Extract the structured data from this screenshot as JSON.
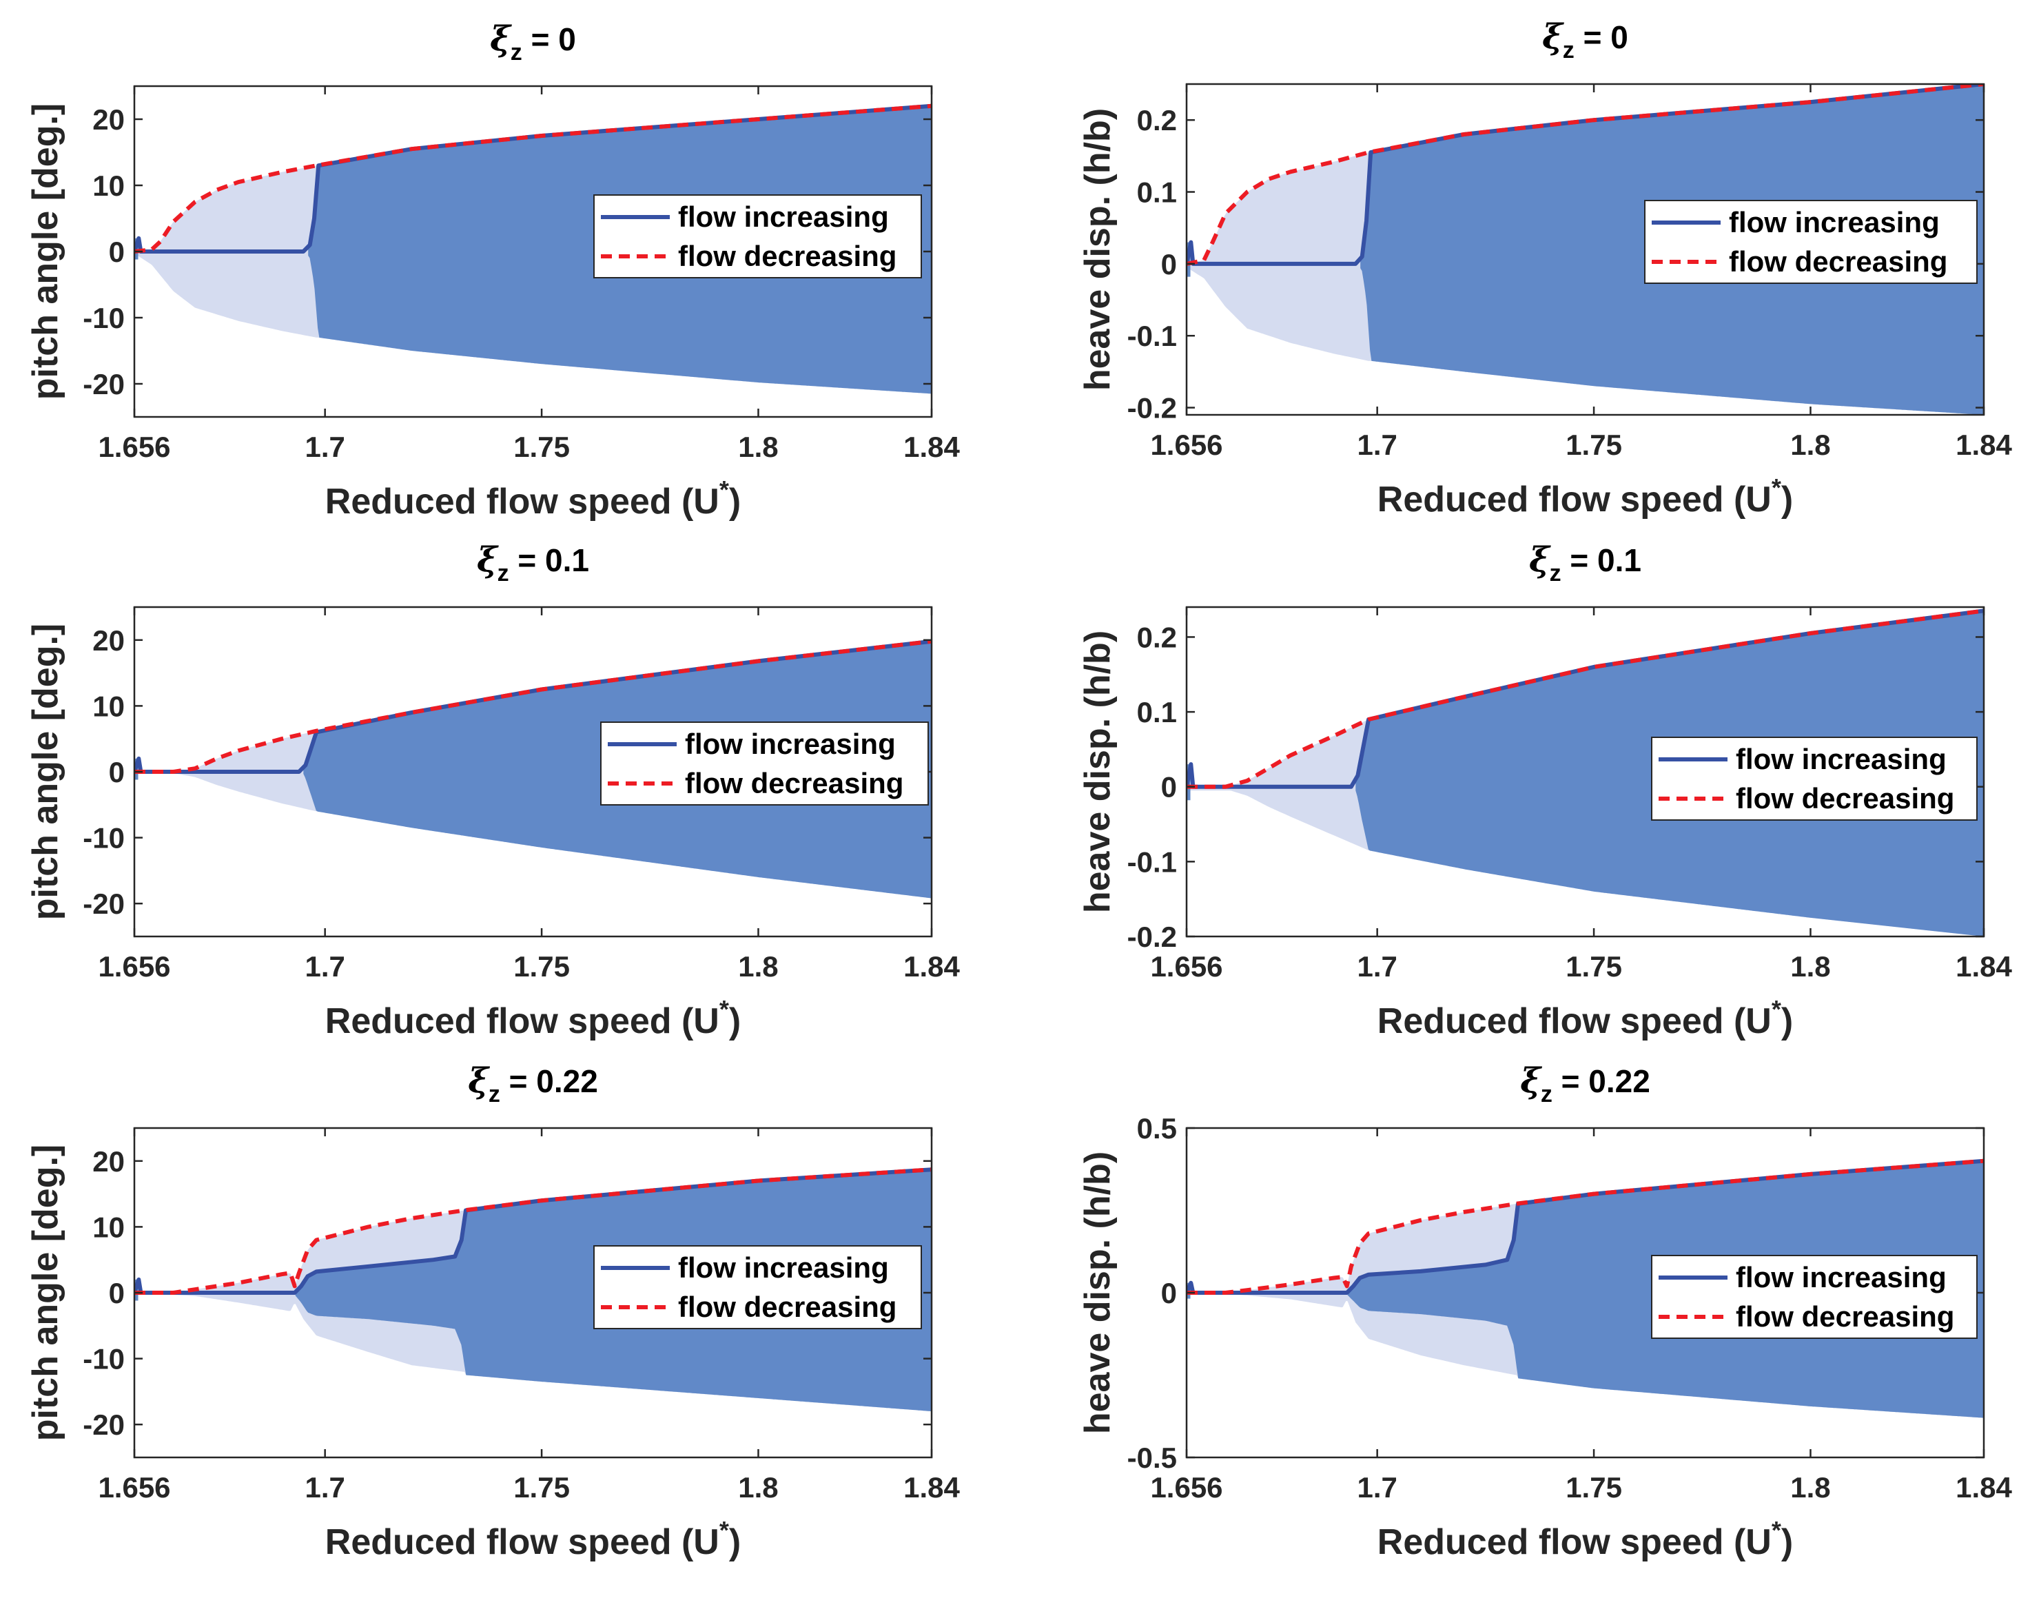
{
  "chart_data": [
    {
      "type": "line",
      "title_symbol": "ξ",
      "title_subscript": "z",
      "title_value": " = 0",
      "xlabel_main": "Reduced flow speed (U",
      "xlabel_sup": "*",
      "xlabel_end": ")",
      "ylabel": "pitch angle [deg.]",
      "xlim": [
        1.656,
        1.84
      ],
      "ylim": [
        -25,
        25
      ],
      "xticks": [
        1.656,
        1.7,
        1.75,
        1.8,
        1.84
      ],
      "xtick_labels": [
        "1.656",
        "1.7",
        "1.75",
        "1.8",
        "1.84"
      ],
      "yticks": [
        20,
        10,
        0,
        -10,
        -20
      ],
      "ytick_labels": [
        "20",
        "10",
        "0",
        "-10",
        "-20"
      ],
      "legend": [
        "flow increasing",
        "flow decreasing"
      ],
      "series": [
        {
          "name": "flow increasing",
          "x": [
            1.656,
            1.657,
            1.6575,
            1.66,
            1.68,
            1.695,
            1.6965,
            1.6975,
            1.6985,
            1.72,
            1.75,
            1.8,
            1.84
          ],
          "y": [
            0,
            2,
            0,
            0,
            0,
            0,
            1.0,
            5,
            13,
            15.5,
            17.5,
            20,
            22
          ]
        },
        {
          "name": "flow decreasing",
          "x": [
            1.656,
            1.66,
            1.662,
            1.665,
            1.67,
            1.675,
            1.68,
            1.69,
            1.698,
            1.72,
            1.75,
            1.8,
            1.84
          ],
          "y": [
            0,
            0.3,
            1.5,
            4.5,
            7.5,
            9.3,
            10.5,
            12,
            13,
            15.5,
            17.5,
            20,
            22
          ]
        }
      ],
      "envelope_lower_light": {
        "x": [
          1.656,
          1.66,
          1.665,
          1.67,
          1.68,
          1.69,
          1.698
        ],
        "y": [
          -0.3,
          -2,
          -6,
          -8.5,
          -10.5,
          -12,
          -13
        ]
      },
      "envelope_lower_dark": {
        "x": [
          1.696,
          1.6965,
          1.6975,
          1.6985,
          1.72,
          1.75,
          1.8,
          1.84
        ],
        "y": [
          -0.5,
          -1,
          -5,
          -13,
          -15,
          -17,
          -19.8,
          -21.5
        ]
      }
    },
    {
      "type": "line",
      "title_symbol": "ξ",
      "title_subscript": "z",
      "title_value": " = 0",
      "xlabel_main": "Reduced flow speed (U",
      "xlabel_sup": "*",
      "xlabel_end": ")",
      "ylabel": "heave disp. (h/b)",
      "xlim": [
        1.656,
        1.84
      ],
      "ylim": [
        -0.21,
        0.25
      ],
      "xticks": [
        1.656,
        1.7,
        1.75,
        1.8,
        1.84
      ],
      "xtick_labels": [
        "1.656",
        "1.7",
        "1.75",
        "1.8",
        "1.84"
      ],
      "yticks": [
        0.2,
        0.1,
        0,
        -0.1,
        -0.2
      ],
      "ytick_labels": [
        "0.2",
        "0.1",
        "0",
        "-0.1",
        "-0.2"
      ],
      "legend": [
        "flow increasing",
        "flow decreasing"
      ],
      "series": [
        {
          "name": "flow increasing",
          "x": [
            1.656,
            1.657,
            1.6575,
            1.66,
            1.68,
            1.695,
            1.6965,
            1.6975,
            1.6985,
            1.72,
            1.75,
            1.8,
            1.84
          ],
          "y": [
            0,
            0.03,
            0,
            0,
            0,
            0,
            0.01,
            0.06,
            0.155,
            0.18,
            0.2,
            0.225,
            0.25
          ]
        },
        {
          "name": "flow decreasing",
          "x": [
            1.656,
            1.66,
            1.662,
            1.665,
            1.67,
            1.675,
            1.68,
            1.69,
            1.698,
            1.72,
            1.75,
            1.8,
            1.84
          ],
          "y": [
            0,
            0.005,
            0.03,
            0.07,
            0.1,
            0.118,
            0.128,
            0.142,
            0.155,
            0.18,
            0.2,
            0.225,
            0.25
          ]
        }
      ],
      "envelope_lower_light": {
        "x": [
          1.656,
          1.66,
          1.665,
          1.67,
          1.68,
          1.69,
          1.698
        ],
        "y": [
          -0.005,
          -0.02,
          -0.06,
          -0.09,
          -0.11,
          -0.125,
          -0.135
        ]
      },
      "envelope_lower_dark": {
        "x": [
          1.696,
          1.6965,
          1.6975,
          1.6985,
          1.72,
          1.75,
          1.8,
          1.84
        ],
        "y": [
          -0.005,
          -0.01,
          -0.05,
          -0.135,
          -0.15,
          -0.17,
          -0.195,
          -0.21
        ]
      }
    },
    {
      "type": "line",
      "title_symbol": "ξ",
      "title_subscript": "z",
      "title_value": " = 0.1",
      "xlabel_main": "Reduced flow speed (U",
      "xlabel_sup": "*",
      "xlabel_end": ")",
      "ylabel": "pitch angle [deg.]",
      "xlim": [
        1.656,
        1.84
      ],
      "ylim": [
        -25,
        25
      ],
      "xticks": [
        1.656,
        1.7,
        1.75,
        1.8,
        1.84
      ],
      "xtick_labels": [
        "1.656",
        "1.7",
        "1.75",
        "1.8",
        "1.84"
      ],
      "yticks": [
        20,
        10,
        0,
        -10,
        -20
      ],
      "ytick_labels": [
        "20",
        "10",
        "0",
        "-10",
        "-20"
      ],
      "legend": [
        "flow increasing",
        "flow decreasing"
      ],
      "series": [
        {
          "name": "flow increasing",
          "x": [
            1.656,
            1.657,
            1.6575,
            1.66,
            1.68,
            1.694,
            1.6955,
            1.6965,
            1.698,
            1.72,
            1.75,
            1.8,
            1.84
          ],
          "y": [
            0,
            2,
            0,
            0,
            0,
            0,
            1,
            3,
            6,
            9,
            12.5,
            16.8,
            19.8
          ]
        },
        {
          "name": "flow decreasing",
          "x": [
            1.656,
            1.665,
            1.67,
            1.675,
            1.68,
            1.69,
            1.698,
            1.72,
            1.75,
            1.8,
            1.84
          ],
          "y": [
            0,
            0,
            0.5,
            2,
            3.2,
            5,
            6.2,
            9,
            12.5,
            16.8,
            19.8
          ]
        }
      ],
      "envelope_lower_light": {
        "x": [
          1.656,
          1.665,
          1.67,
          1.675,
          1.68,
          1.69,
          1.698
        ],
        "y": [
          0,
          -0.2,
          -0.8,
          -2,
          -3,
          -4.8,
          -6
        ]
      },
      "envelope_lower_dark": {
        "x": [
          1.695,
          1.6955,
          1.6965,
          1.698,
          1.72,
          1.75,
          1.8,
          1.84
        ],
        "y": [
          -0.3,
          -1,
          -3,
          -6,
          -8.5,
          -11.5,
          -16,
          -19.2
        ]
      }
    },
    {
      "type": "line",
      "title_symbol": "ξ",
      "title_subscript": "z",
      "title_value": " = 0.1",
      "xlabel_main": "Reduced flow speed (U",
      "xlabel_sup": "*",
      "xlabel_end": ")",
      "ylabel": "heave disp. (h/b)",
      "xlim": [
        1.656,
        1.84
      ],
      "ylim": [
        -0.2,
        0.24
      ],
      "xticks": [
        1.656,
        1.7,
        1.75,
        1.8,
        1.84
      ],
      "xtick_labels": [
        "1.656",
        "1.7",
        "1.75",
        "1.8",
        "1.84"
      ],
      "yticks": [
        0.2,
        0.1,
        0,
        -0.1,
        -0.2
      ],
      "ytick_labels": [
        "0.2",
        "0.1",
        "0",
        "-0.1",
        "-0.2"
      ],
      "legend": [
        "flow increasing",
        "flow decreasing"
      ],
      "series": [
        {
          "name": "flow increasing",
          "x": [
            1.656,
            1.657,
            1.6575,
            1.66,
            1.68,
            1.694,
            1.6955,
            1.6965,
            1.698,
            1.72,
            1.75,
            1.8,
            1.84
          ],
          "y": [
            0,
            0.03,
            0,
            0,
            0,
            0,
            0.015,
            0.045,
            0.09,
            0.12,
            0.16,
            0.205,
            0.235
          ]
        },
        {
          "name": "flow decreasing",
          "x": [
            1.656,
            1.665,
            1.67,
            1.675,
            1.68,
            1.69,
            1.698,
            1.72,
            1.75,
            1.8,
            1.84
          ],
          "y": [
            0,
            0,
            0.008,
            0.025,
            0.042,
            0.068,
            0.09,
            0.12,
            0.16,
            0.205,
            0.235
          ]
        }
      ],
      "envelope_lower_light": {
        "x": [
          1.656,
          1.665,
          1.67,
          1.675,
          1.68,
          1.69,
          1.698
        ],
        "y": [
          0,
          -0.003,
          -0.012,
          -0.027,
          -0.04,
          -0.065,
          -0.085
        ]
      },
      "envelope_lower_dark": {
        "x": [
          1.695,
          1.6955,
          1.6965,
          1.698,
          1.72,
          1.75,
          1.8,
          1.84
        ],
        "y": [
          -0.005,
          -0.015,
          -0.045,
          -0.085,
          -0.11,
          -0.14,
          -0.175,
          -0.2
        ]
      }
    },
    {
      "type": "line",
      "title_symbol": "ξ",
      "title_subscript": "z",
      "title_value": " = 0.22",
      "xlabel_main": "Reduced flow speed (U",
      "xlabel_sup": "*",
      "xlabel_end": ")",
      "ylabel": "pitch angle [deg.]",
      "xlim": [
        1.656,
        1.84
      ],
      "ylim": [
        -25,
        25
      ],
      "xticks": [
        1.656,
        1.7,
        1.75,
        1.8,
        1.84
      ],
      "xtick_labels": [
        "1.656",
        "1.7",
        "1.75",
        "1.8",
        "1.84"
      ],
      "yticks": [
        20,
        10,
        0,
        -10,
        -20
      ],
      "ytick_labels": [
        "20",
        "10",
        "0",
        "-10",
        "-20"
      ],
      "legend": [
        "flow increasing",
        "flow decreasing"
      ],
      "series": [
        {
          "name": "flow increasing",
          "x": [
            1.656,
            1.657,
            1.6575,
            1.66,
            1.68,
            1.693,
            1.6945,
            1.696,
            1.698,
            1.71,
            1.725,
            1.73,
            1.7315,
            1.7325,
            1.75,
            1.8,
            1.84
          ],
          "y": [
            0,
            2,
            0,
            0,
            0,
            0,
            1,
            2.5,
            3.2,
            4,
            5,
            5.5,
            8,
            12.5,
            14,
            17,
            18.7
          ]
        },
        {
          "name": "flow decreasing",
          "x": [
            1.656,
            1.665,
            1.67,
            1.68,
            1.69,
            1.692,
            1.693,
            1.694,
            1.696,
            1.698,
            1.71,
            1.72,
            1.732,
            1.75,
            1.8,
            1.84
          ],
          "y": [
            0,
            0,
            0.5,
            1.5,
            2.8,
            3.0,
            1.0,
            3,
            6.5,
            8,
            10,
            11.3,
            12.5,
            14,
            17,
            18.7
          ]
        }
      ],
      "envelope_lower_light": {
        "x": [
          1.656,
          1.67,
          1.68,
          1.692,
          1.693,
          1.695,
          1.698,
          1.71,
          1.72,
          1.732
        ],
        "y": [
          0,
          -0.5,
          -1.5,
          -2.8,
          -1.5,
          -4,
          -6.5,
          -9,
          -11,
          -12
        ]
      },
      "envelope_lower_dark": {
        "x": [
          1.693,
          1.6945,
          1.696,
          1.698,
          1.71,
          1.725,
          1.73,
          1.7315,
          1.7325,
          1.75,
          1.8,
          1.84
        ],
        "y": [
          -0.3,
          -1.5,
          -3,
          -3.5,
          -4,
          -5,
          -5.5,
          -8,
          -12.5,
          -13.5,
          -16,
          -18
        ]
      }
    },
    {
      "type": "line",
      "title_symbol": "ξ",
      "title_subscript": "z",
      "title_value": " = 0.22",
      "xlabel_main": "Reduced flow speed (U",
      "xlabel_sup": "*",
      "xlabel_end": ")",
      "ylabel": "heave disp. (h/b)",
      "xlim": [
        1.656,
        1.84
      ],
      "ylim": [
        -0.5,
        0.5
      ],
      "xticks": [
        1.656,
        1.7,
        1.75,
        1.8,
        1.84
      ],
      "xtick_labels": [
        "1.656",
        "1.7",
        "1.75",
        "1.8",
        "1.84"
      ],
      "yticks": [
        0.5,
        0,
        -0.5
      ],
      "ytick_labels": [
        "0.5",
        "0",
        "-0.5"
      ],
      "legend": [
        "flow increasing",
        "flow decreasing"
      ],
      "series": [
        {
          "name": "flow increasing",
          "x": [
            1.656,
            1.657,
            1.6575,
            1.66,
            1.68,
            1.693,
            1.6945,
            1.696,
            1.698,
            1.71,
            1.725,
            1.73,
            1.7315,
            1.7325,
            1.75,
            1.8,
            1.84
          ],
          "y": [
            0,
            0.03,
            0,
            0,
            0,
            0,
            0.02,
            0.045,
            0.055,
            0.065,
            0.085,
            0.1,
            0.16,
            0.27,
            0.3,
            0.36,
            0.4
          ]
        },
        {
          "name": "flow decreasing",
          "x": [
            1.656,
            1.665,
            1.67,
            1.68,
            1.69,
            1.692,
            1.693,
            1.694,
            1.696,
            1.698,
            1.71,
            1.72,
            1.732,
            1.75,
            1.8,
            1.84
          ],
          "y": [
            0,
            0,
            0.008,
            0.025,
            0.045,
            0.048,
            0.02,
            0.08,
            0.15,
            0.18,
            0.22,
            0.245,
            0.27,
            0.3,
            0.36,
            0.4
          ]
        }
      ],
      "envelope_lower_light": {
        "x": [
          1.656,
          1.67,
          1.68,
          1.692,
          1.693,
          1.695,
          1.698,
          1.71,
          1.72,
          1.732
        ],
        "y": [
          0,
          -0.008,
          -0.02,
          -0.045,
          -0.02,
          -0.09,
          -0.14,
          -0.19,
          -0.22,
          -0.25
        ]
      },
      "envelope_lower_dark": {
        "x": [
          1.693,
          1.6945,
          1.696,
          1.698,
          1.71,
          1.725,
          1.73,
          1.7315,
          1.7325,
          1.75,
          1.8,
          1.84
        ],
        "y": [
          -0.005,
          -0.025,
          -0.045,
          -0.055,
          -0.065,
          -0.085,
          -0.1,
          -0.16,
          -0.26,
          -0.29,
          -0.345,
          -0.38
        ]
      }
    }
  ]
}
